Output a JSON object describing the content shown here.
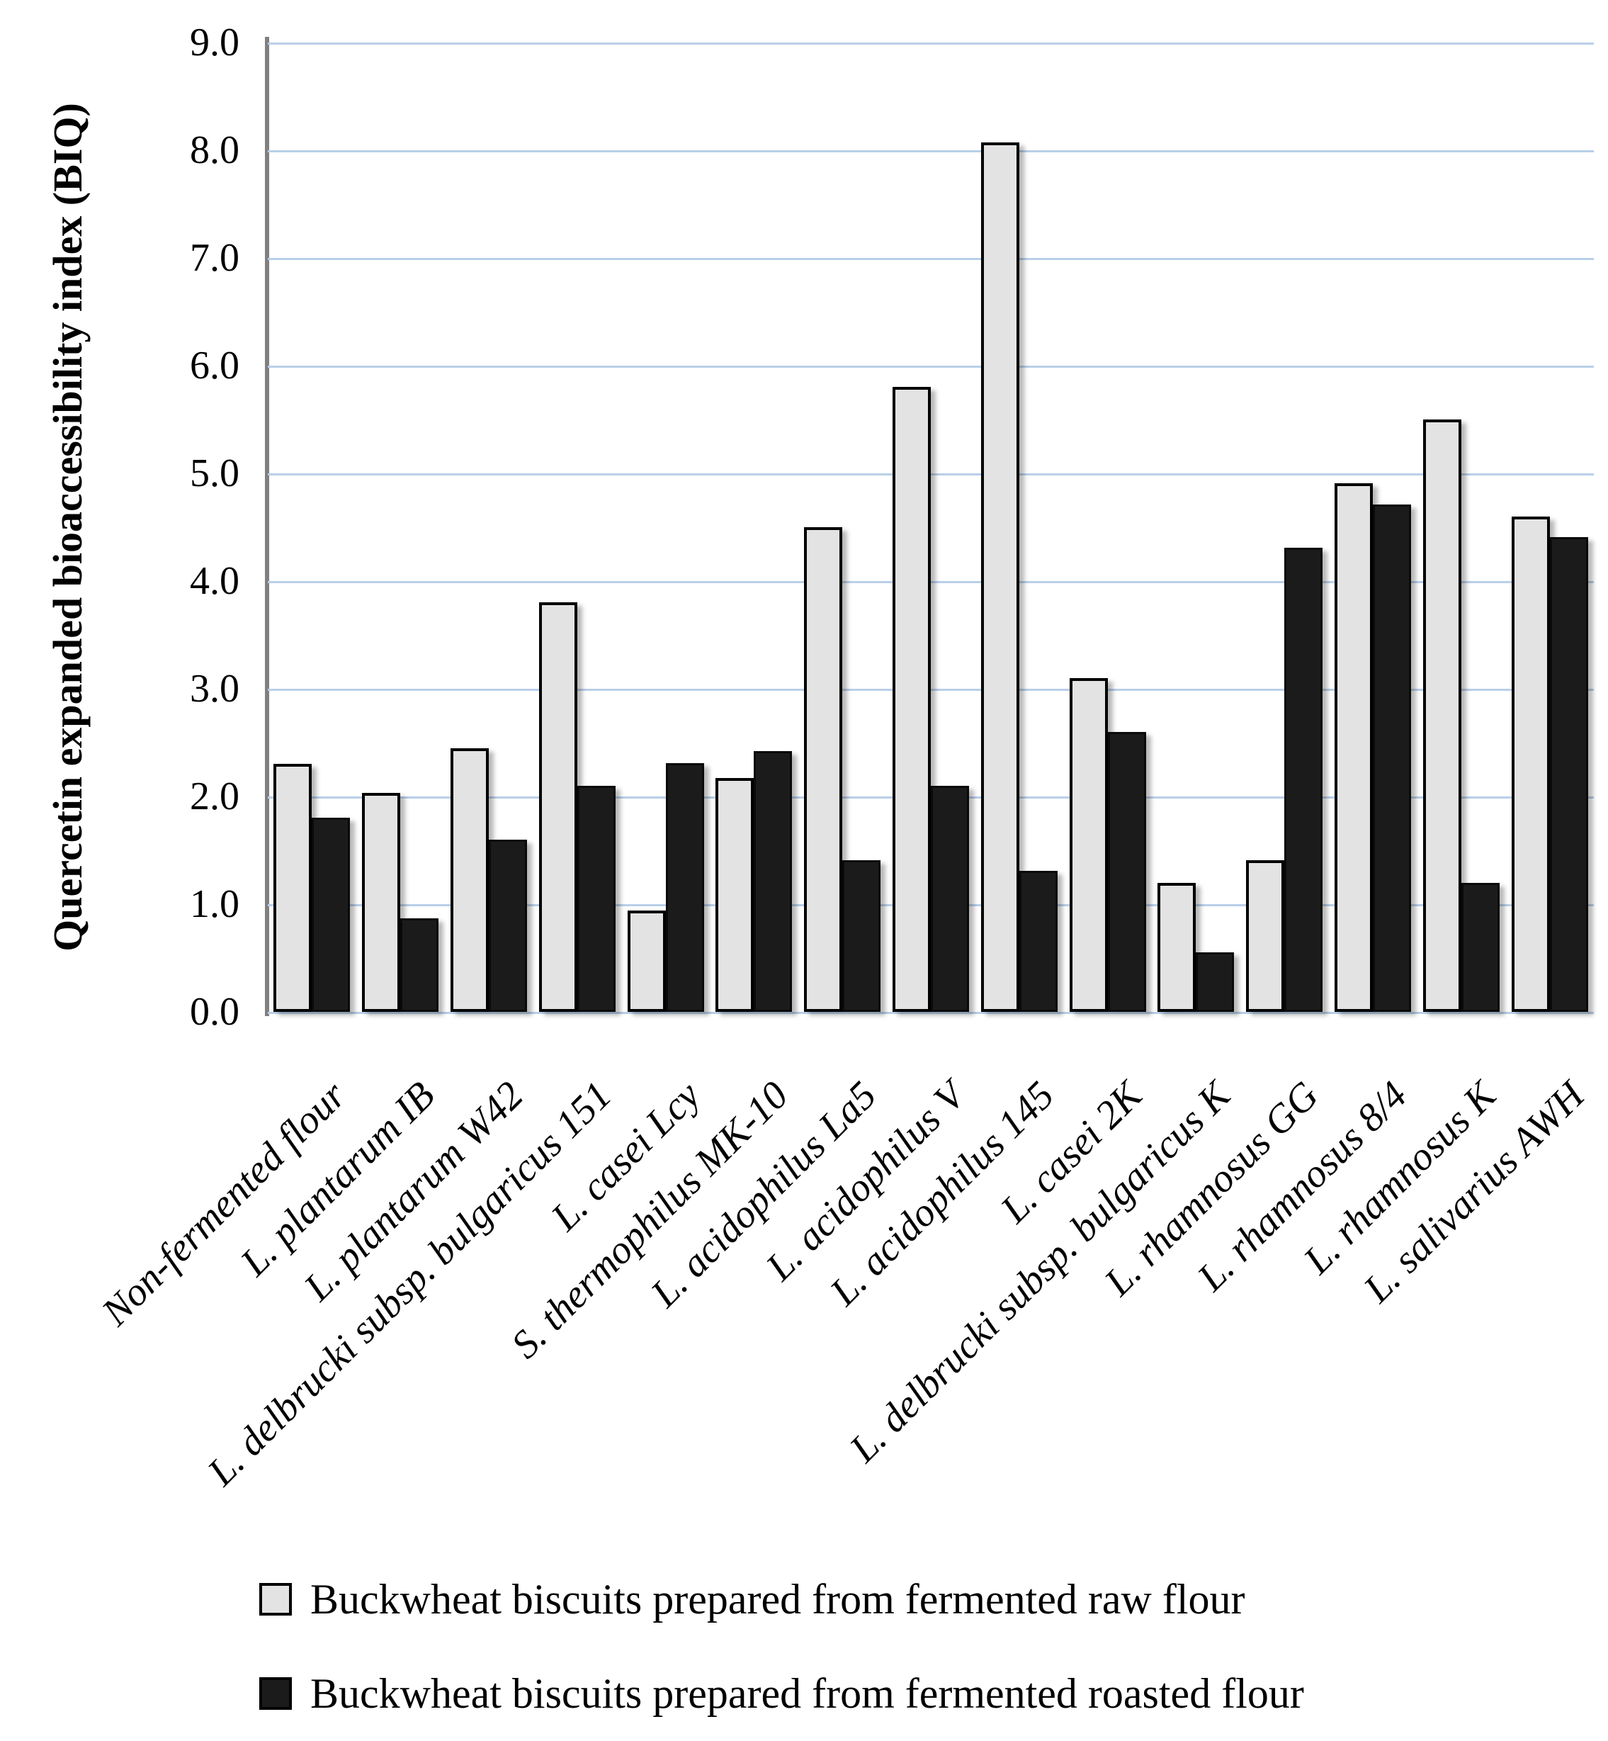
{
  "chart_data": {
    "type": "bar",
    "title": "",
    "xlabel": "",
    "ylabel": "Quercetin expanded bioaccessibility index (BIQ)",
    "ylim": [
      0,
      9
    ],
    "ytick_step": 1.0,
    "ytick_labels": [
      "9.0",
      "8.0",
      "7.0",
      "6.0",
      "5.0",
      "4.0",
      "3.0",
      "2.0",
      "1.0",
      "0.0"
    ],
    "grid": true,
    "legend_position": "bottom",
    "categories": [
      "Non-fermented flour",
      "L. plantarum IB",
      "L. plantarum W42",
      "L. delbrucki subsp. bulgaricus 151",
      "L. casei Lcy",
      "S. thermophilus MK-10",
      "L. acidophilus La5",
      "L. acidophilus V",
      "L. acidophilus 145",
      "L. casei 2K",
      "L. delbrucki subsp. bulgaricus K",
      "L. rhamnosus GG",
      "L. rhamnosus 8/4",
      "L. rhamnosus K",
      "L. salivarius AWH"
    ],
    "series": [
      {
        "name": "Buckwheat biscuits prepared from fermented raw flour",
        "color": "#e3e3e3",
        "values": [
          2.3,
          2.03,
          2.45,
          3.8,
          0.94,
          2.17,
          4.5,
          5.8,
          8.07,
          3.1,
          1.2,
          1.41,
          4.91,
          5.5,
          4.6
        ]
      },
      {
        "name": "Buckwheat biscuits prepared from fermented roasted flour",
        "color": "#1b1b1b",
        "values": [
          1.8,
          0.87,
          1.6,
          2.1,
          2.31,
          2.42,
          1.41,
          2.1,
          1.31,
          2.6,
          0.55,
          4.31,
          4.71,
          1.2,
          4.41
        ]
      }
    ]
  },
  "colors": {
    "gridline": "#b9cfe8",
    "axis_line": "#808080",
    "bar_border": "#000000",
    "text": "#000000",
    "background": "#ffffff"
  }
}
